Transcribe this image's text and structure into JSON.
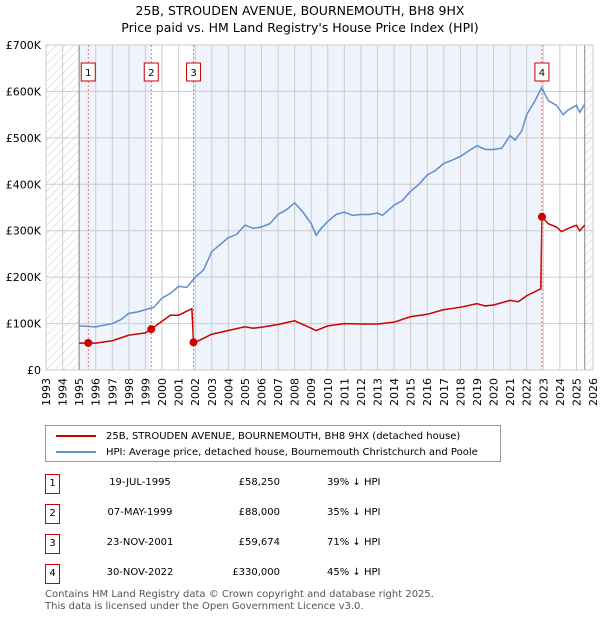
{
  "chart_data": {
    "type": "line",
    "title": "25B, STROUDEN AVENUE, BOURNEMOUTH, BH8 9HX",
    "subtitle": "Price paid vs. HM Land Registry's House Price Index (HPI)",
    "xlim": [
      1993,
      2026
    ],
    "ylim": [
      0,
      700000
    ],
    "yticks": [
      {
        "v": 0,
        "label": "£0"
      },
      {
        "v": 100000,
        "label": "£100K"
      },
      {
        "v": 200000,
        "label": "£200K"
      },
      {
        "v": 300000,
        "label": "£300K"
      },
      {
        "v": 400000,
        "label": "£400K"
      },
      {
        "v": 500000,
        "label": "£500K"
      },
      {
        "v": 600000,
        "label": "£600K"
      },
      {
        "v": 700000,
        "label": "£700K"
      }
    ],
    "xticks": [
      "1993",
      "1994",
      "1995",
      "1996",
      "1997",
      "1998",
      "1999",
      "2000",
      "2001",
      "2002",
      "2003",
      "2004",
      "2005",
      "2006",
      "2007",
      "2008",
      "2009",
      "2010",
      "2011",
      "2012",
      "2013",
      "2014",
      "2015",
      "2016",
      "2017",
      "2018",
      "2019",
      "2020",
      "2021",
      "2022",
      "2023",
      "2024",
      "2025",
      "2026"
    ],
    "series": [
      {
        "name": "HPI: Average price, detached house, Bournemouth Christchurch and Poole",
        "color": "#5b8fd0",
        "x": [
          1995,
          1996,
          1997,
          1997.5,
          1998,
          1998.5,
          1999,
          1999.5,
          2000,
          2000.5,
          2001,
          2001.5,
          2002,
          2002.5,
          2003,
          2003.5,
          2004,
          2004.5,
          2005,
          2005.5,
          2006,
          2006.5,
          2007,
          2007.5,
          2008,
          2008.5,
          2009,
          2009.3,
          2009.6,
          2010,
          2010.5,
          2011,
          2011.5,
          2012,
          2012.5,
          2013,
          2013.3,
          2014,
          2014.5,
          2015,
          2015.5,
          2016,
          2016.5,
          2017,
          2017.5,
          2018,
          2018.5,
          2019,
          2019.5,
          2020,
          2020.5,
          2021,
          2021.3,
          2021.7,
          2022,
          2022.5,
          2022.9,
          2023.3,
          2023.8,
          2024.2,
          2024.5,
          2025,
          2025.2,
          2025.5
        ],
        "y": [
          95000,
          93000,
          100000,
          108000,
          122000,
          125000,
          130000,
          135000,
          155000,
          165000,
          180000,
          178000,
          200000,
          215000,
          255000,
          270000,
          285000,
          292000,
          312000,
          305000,
          308000,
          315000,
          335000,
          345000,
          360000,
          340000,
          315000,
          290000,
          305000,
          320000,
          335000,
          340000,
          333000,
          335000,
          335000,
          338000,
          333000,
          355000,
          365000,
          385000,
          400000,
          420000,
          430000,
          445000,
          452000,
          460000,
          472000,
          483000,
          475000,
          475000,
          478000,
          505000,
          495000,
          515000,
          550000,
          580000,
          608000,
          580000,
          570000,
          550000,
          560000,
          570000,
          555000,
          572000
        ]
      },
      {
        "name": "25B, STROUDEN AVENUE, BOURNEMOUTH, BH8 9HX (detached house)",
        "color": "#cc0000",
        "x": [
          1995,
          1995.55,
          1996,
          1997,
          1998,
          1999,
          1999.35,
          2000,
          2000.5,
          2001,
          2001.8,
          2001.9,
          2002.2,
          2003,
          2004,
          2005,
          2005.5,
          2006,
          2007,
          2008,
          2009,
          2009.3,
          2010,
          2011,
          2012,
          2013,
          2014,
          2015,
          2016,
          2017,
          2018,
          2019,
          2019.5,
          2020,
          2021,
          2021.5,
          2022,
          2022.85,
          2022.92,
          2023.3,
          2023.8,
          2024.1,
          2024.5,
          2025,
          2025.2,
          2025.5
        ],
        "y": [
          58000,
          58250,
          58000,
          63000,
          75000,
          80000,
          88000,
          105000,
          118000,
          118000,
          132000,
          59674,
          63000,
          77000,
          85000,
          93000,
          90000,
          92000,
          98000,
          106000,
          90000,
          85000,
          95000,
          100000,
          99000,
          99000,
          103000,
          115000,
          120000,
          130000,
          135000,
          143000,
          138000,
          140000,
          150000,
          147000,
          160000,
          175000,
          330000,
          315000,
          308000,
          298000,
          305000,
          312000,
          300000,
          312000
        ]
      }
    ],
    "sales": [
      {
        "n": "1",
        "x": 1995.55,
        "y": 58250,
        "date": "19-JUL-1995",
        "price": "£58,250",
        "hpi": "39% ↓ HPI"
      },
      {
        "n": "2",
        "x": 1999.35,
        "y": 88000,
        "date": "07-MAY-1999",
        "price": "£88,000",
        "hpi": "35% ↓ HPI"
      },
      {
        "n": "3",
        "x": 2001.9,
        "y": 59674,
        "date": "23-NOV-2001",
        "price": "£59,674",
        "hpi": "71% ↓ HPI"
      },
      {
        "n": "4",
        "x": 2022.92,
        "y": 330000,
        "date": "30-NOV-2022",
        "price": "£330,000",
        "hpi": "45% ↓ HPI"
      }
    ],
    "hatch_before": 1995,
    "hatch_after": 2025.5
  },
  "footer": {
    "line1": "Contains HM Land Registry data © Crown copyright and database right 2025.",
    "line2": "This data is licensed under the Open Government Licence v3.0."
  }
}
